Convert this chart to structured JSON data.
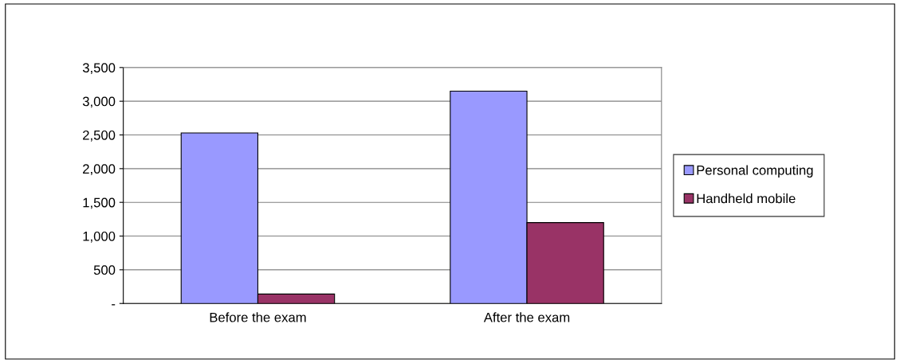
{
  "chart_data": {
    "type": "bar",
    "categories": [
      "Before the exam",
      "After the exam"
    ],
    "series": [
      {
        "name": "Personal computing",
        "color": "#9999ff",
        "values": [
          2530,
          3150
        ]
      },
      {
        "name": "Handheld mobile",
        "color": "#993366",
        "values": [
          140,
          1200
        ]
      }
    ],
    "ylim": [
      0,
      3500
    ],
    "yticks": [
      {
        "value": 0,
        "label": "-"
      },
      {
        "value": 500,
        "label": "500"
      },
      {
        "value": 1000,
        "label": "1,000"
      },
      {
        "value": 1500,
        "label": "1,500"
      },
      {
        "value": 2000,
        "label": "2,000"
      },
      {
        "value": 2500,
        "label": "2,500"
      },
      {
        "value": 3000,
        "label": "3,000"
      },
      {
        "value": 3500,
        "label": "3,500"
      }
    ],
    "grid": "y",
    "legend": "right"
  }
}
